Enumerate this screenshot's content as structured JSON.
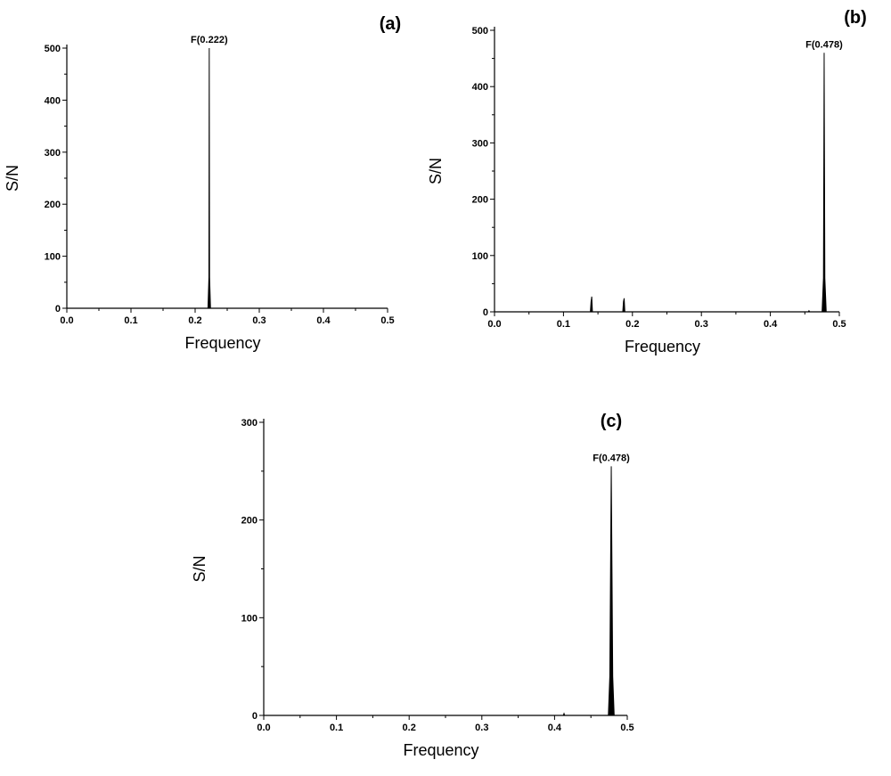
{
  "chart_data": [
    {
      "type": "line",
      "panel_label": "(a)",
      "xlabel": "Frequency",
      "ylabel": "S/N",
      "xlim": [
        0.0,
        0.5
      ],
      "ylim": [
        0,
        500
      ],
      "x_ticks": [
        0.0,
        0.1,
        0.2,
        0.3,
        0.4,
        0.5
      ],
      "x_tick_labels": [
        "0.0",
        "0.1",
        "0.2",
        "0.3",
        "0.4",
        "0.5"
      ],
      "y_ticks": [
        0,
        100,
        200,
        300,
        400,
        500
      ],
      "y_tick_labels": [
        "0",
        "100",
        "200",
        "300",
        "400",
        "500"
      ],
      "grid": false,
      "series": [
        {
          "x": [
            0.0,
            0.22,
            0.2215,
            0.222,
            0.2225,
            0.224,
            0.5
          ],
          "y": [
            0,
            0,
            60,
            500,
            60,
            0,
            0
          ]
        }
      ],
      "annotations": [
        {
          "text": "F(0.222)",
          "x": 0.222,
          "y": 500
        }
      ]
    },
    {
      "type": "line",
      "panel_label": "(b)",
      "xlabel": "Frequency",
      "ylabel": "S/N",
      "xlim": [
        0.0,
        0.5
      ],
      "ylim": [
        0,
        500
      ],
      "x_ticks": [
        0.0,
        0.1,
        0.2,
        0.3,
        0.4,
        0.5
      ],
      "x_tick_labels": [
        "0.0",
        "0.1",
        "0.2",
        "0.3",
        "0.4",
        "0.5"
      ],
      "y_ticks": [
        0,
        100,
        200,
        300,
        400,
        500
      ],
      "y_tick_labels": [
        "0",
        "100",
        "200",
        "300",
        "400",
        "500"
      ],
      "grid": false,
      "series": [
        {
          "x": [
            0.0,
            0.139,
            0.14,
            0.141,
            0.142,
            0.186,
            0.187,
            0.188,
            0.189,
            0.455,
            0.456,
            0.457,
            0.475,
            0.477,
            0.478,
            0.479,
            0.481,
            0.5
          ],
          "y": [
            0,
            0,
            18,
            27,
            0,
            0,
            18,
            24,
            0,
            0,
            2,
            0,
            0,
            60,
            460,
            60,
            0,
            0
          ]
        }
      ],
      "annotations": [
        {
          "text": "F(0.478)",
          "x": 0.478,
          "y": 460
        }
      ]
    },
    {
      "type": "line",
      "panel_label": "(c)",
      "xlabel": "Frequency",
      "ylabel": "S/N",
      "xlim": [
        0.0,
        0.5
      ],
      "ylim": [
        0,
        300
      ],
      "x_ticks": [
        0.0,
        0.1,
        0.2,
        0.3,
        0.4,
        0.5
      ],
      "x_tick_labels": [
        "0.0",
        "0.1",
        "0.2",
        "0.3",
        "0.4",
        "0.5"
      ],
      "y_ticks": [
        0,
        100,
        200,
        300
      ],
      "y_tick_labels": [
        "0",
        "100",
        "200",
        "300"
      ],
      "grid": false,
      "series": [
        {
          "x": [
            0.0,
            0.412,
            0.413,
            0.414,
            0.474,
            0.476,
            0.478,
            0.48,
            0.482,
            0.5
          ],
          "y": [
            0,
            0,
            2,
            0,
            0,
            40,
            255,
            40,
            0,
            0
          ]
        }
      ],
      "annotations": [
        {
          "text": "F(0.478)",
          "x": 0.478,
          "y": 255
        }
      ]
    }
  ]
}
